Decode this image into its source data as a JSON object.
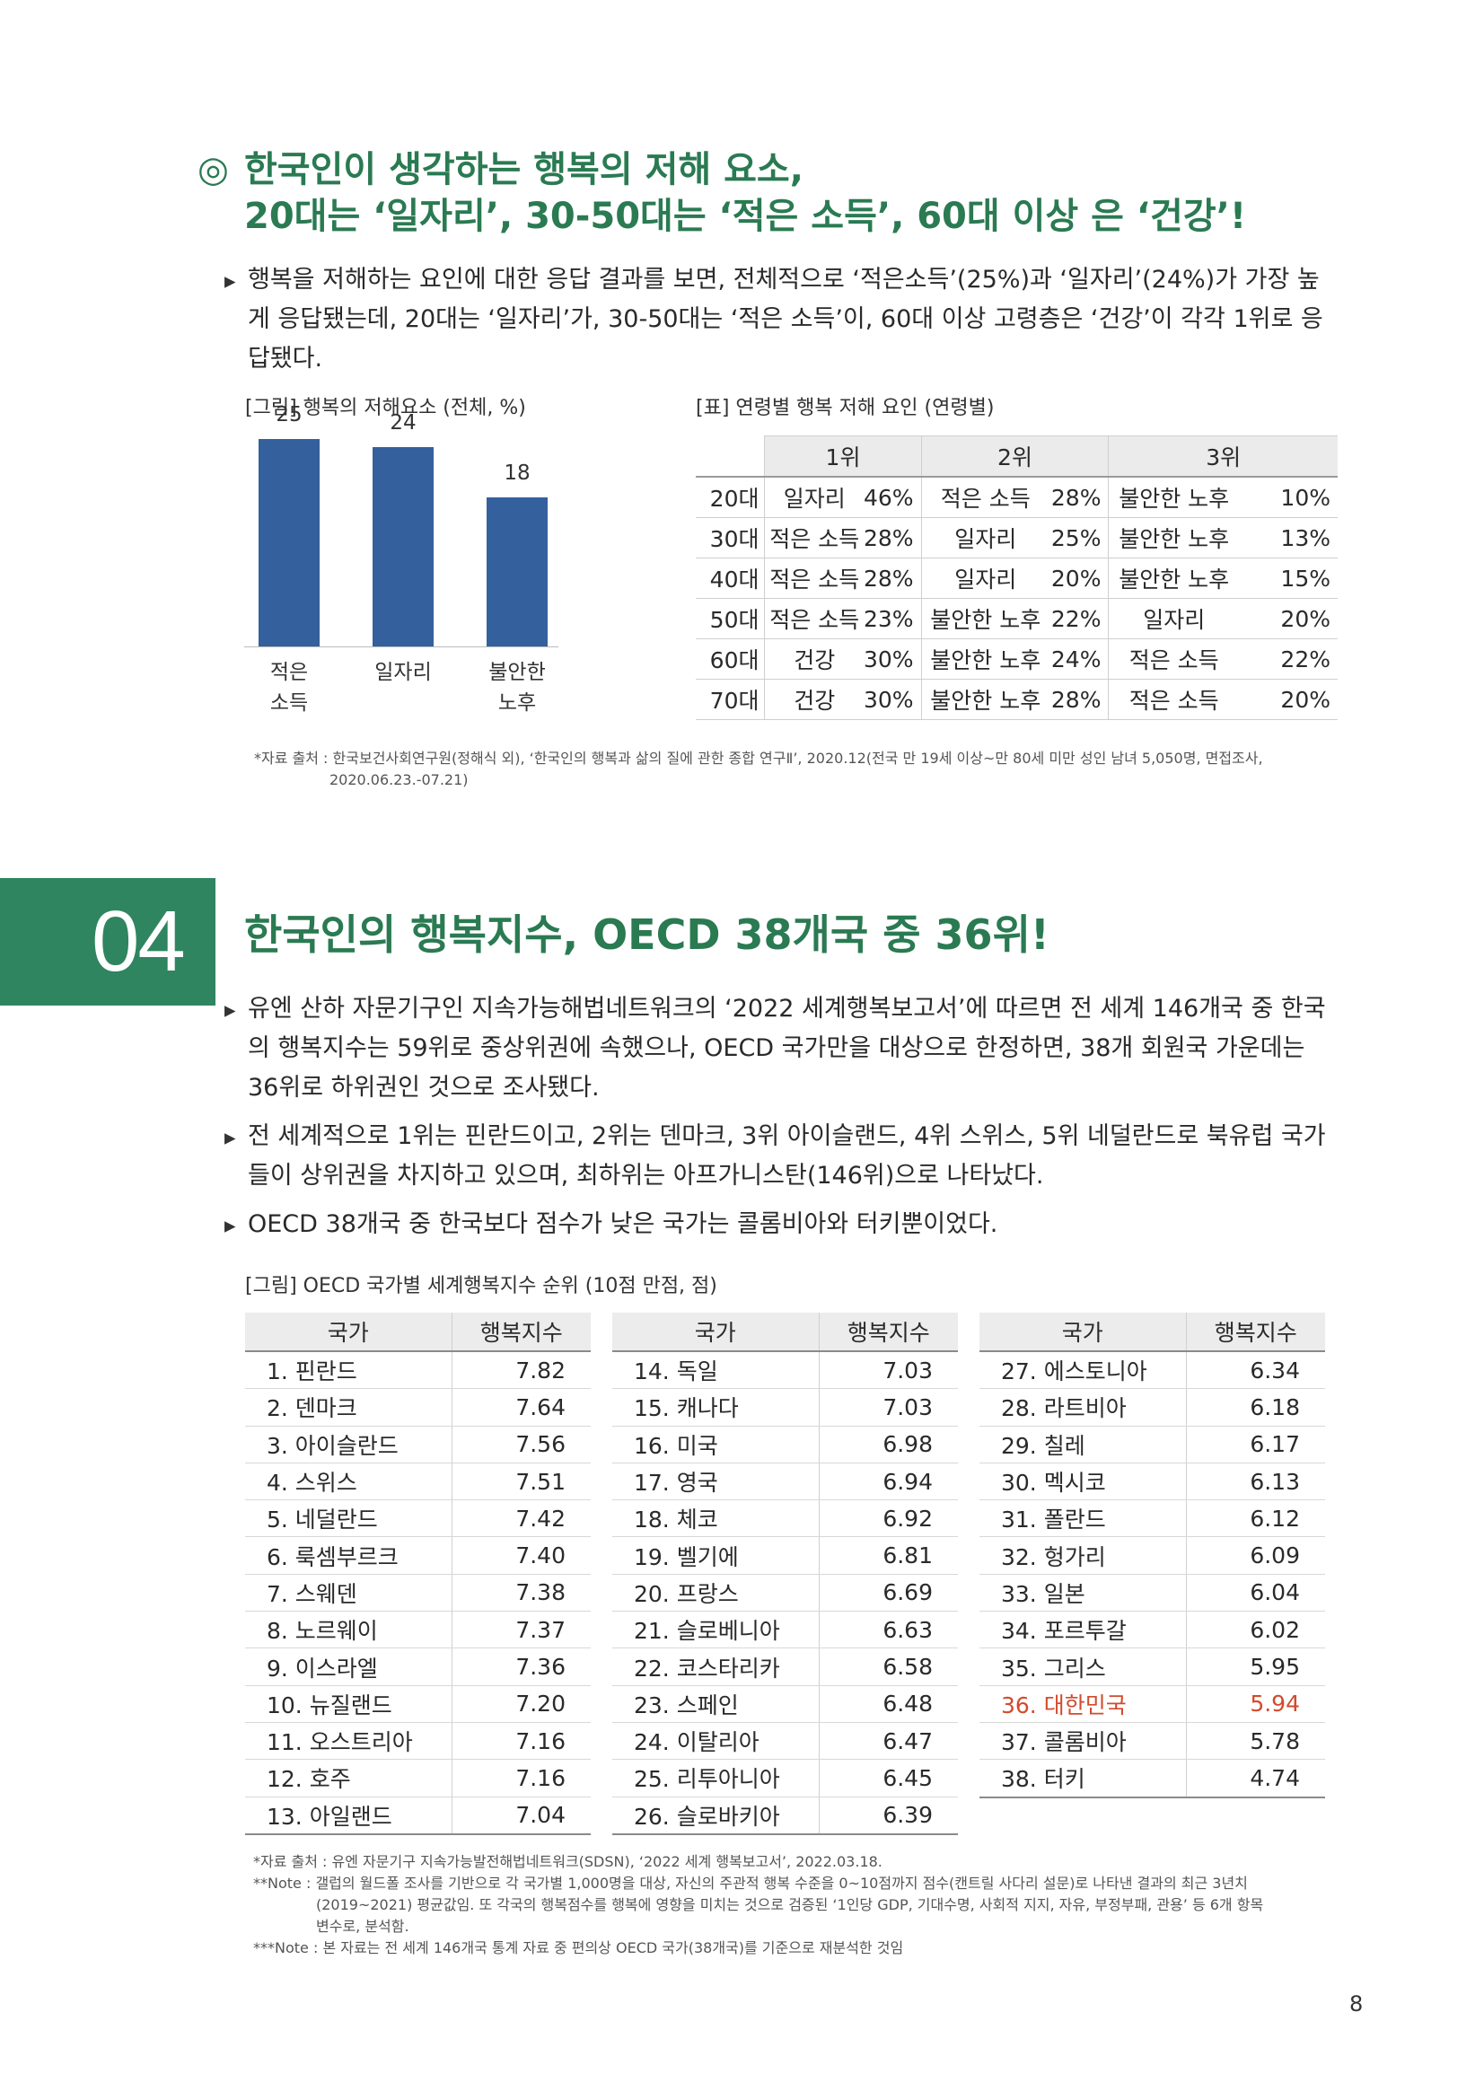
{
  "section1": {
    "title_marker": "◎",
    "title_line1": "한국인이 생각하는 행복의 저해 요소,",
    "title_line2": "20대는 ‘일자리’, 30-50대는 ‘적은 소득’, 60대 이상 은 ‘건강’!",
    "paragraph_lines": [
      "행복을 저해하는 요인에 대한 응답 결과를 보면, 전체적으로 ‘적은소득’(25%)과 ‘일자리’(24%)가 가장 높",
      "게 응답됐는데, 20대는 ‘일자리’가, 30-50대는 ‘적은 소득’이, 60대 이상 고령층은 ‘건강’이 각각 1위로 응",
      "답됐다."
    ],
    "chart_caption": "[그림] 행복의 저해요소 (전체, %)",
    "table_caption": "[표] 연령별 행복 저해 요인 (연령별)",
    "table": {
      "headers": [
        "1위",
        "2위",
        "3위"
      ],
      "rows": [
        {
          "age": "20대",
          "c1": [
            "일자리",
            "46%"
          ],
          "c2": [
            "적은 소득",
            "28%"
          ],
          "c3": [
            "불안한 노후",
            "10%"
          ]
        },
        {
          "age": "30대",
          "c1": [
            "적은 소득",
            "28%"
          ],
          "c2": [
            "일자리",
            "25%"
          ],
          "c3": [
            "불안한 노후",
            "13%"
          ]
        },
        {
          "age": "40대",
          "c1": [
            "적은 소득",
            "28%"
          ],
          "c2": [
            "일자리",
            "20%"
          ],
          "c3": [
            "불안한 노후",
            "15%"
          ]
        },
        {
          "age": "50대",
          "c1": [
            "적은 소득",
            "23%"
          ],
          "c2": [
            "불안한 노후",
            "22%"
          ],
          "c3": [
            "일자리",
            "20%"
          ]
        },
        {
          "age": "60대",
          "c1": [
            "건강",
            "30%"
          ],
          "c2": [
            "불안한 노후",
            "24%"
          ],
          "c3": [
            "적은 소득",
            "22%"
          ]
        },
        {
          "age": "70대",
          "c1": [
            "건강",
            "30%"
          ],
          "c2": [
            "불안한 노후",
            "28%"
          ],
          "c3": [
            "적은 소득",
            "20%"
          ]
        }
      ]
    },
    "source_line1": "*자료 출처 : 한국보건사회연구원(정해식 외), ‘한국인의 행복과 삶의 질에 관한 종합 연구Ⅱ’, 2020.12(전국 만 19세 이상~만 80세 미만 성인 남녀 5,050명, 면접조사,",
    "source_line2": "2020.06.23.-07.21)"
  },
  "chart_data": {
    "type": "bar",
    "title": "[그림] 행복의 저해요소 (전체, %)",
    "categories": [
      [
        "적은",
        "소득"
      ],
      [
        "일자리"
      ],
      [
        "불안한",
        "노후"
      ]
    ],
    "values": [
      25,
      24,
      18
    ],
    "value_labels": [
      "25",
      "24",
      "18"
    ],
    "ylim": [
      0,
      26
    ],
    "bar_color": "#34609d"
  },
  "section2": {
    "number": "04",
    "title": "한국인의 행복지수, OECD 38개국 중 36위!",
    "bullets": [
      [
        "유엔 산하 자문기구인 지속가능해법네트워크의 ‘2022 세계행복보고서’에 따르면 전 세계 146개국 중 한국",
        "의 행복지수는 59위로 중상위권에 속했으나, OECD 국가만을 대상으로 한정하면, 38개 회원국 가운데는",
        "36위로 하위권인 것으로 조사됐다."
      ],
      [
        "전 세계적으로 1위는 핀란드이고, 2위는 덴마크, 3위 아이슬랜드, 4위 스위스, 5위 네덜란드로 북유럽 국가",
        "들이 상위권을 차지하고 있으며, 최하위는 아프가니스탄(146위)으로 나타났다."
      ],
      [
        "OECD 38개국 중 한국보다 점수가 낮은 국가는 콜롬비아와 터키뿐이었다."
      ]
    ],
    "ranking_caption": "[그림] OECD 국가별 세계행복지수 순위 (10점 만점, 점)",
    "col_country": "국가",
    "col_score": "행복지수",
    "highlight_color": "#d34a2c",
    "tables": [
      [
        [
          "1. 핀란드",
          "7.82"
        ],
        [
          "2. 덴마크",
          "7.64"
        ],
        [
          "3. 아이슬란드",
          "7.56"
        ],
        [
          "4. 스위스",
          "7.51"
        ],
        [
          "5. 네덜란드",
          "7.42"
        ],
        [
          "6. 룩셈부르크",
          "7.40"
        ],
        [
          "7. 스웨덴",
          "7.38"
        ],
        [
          "8. 노르웨이",
          "7.37"
        ],
        [
          "9. 이스라엘",
          "7.36"
        ],
        [
          "10. 뉴질랜드",
          "7.20"
        ],
        [
          "11. 오스트리아",
          "7.16"
        ],
        [
          "12. 호주",
          "7.16"
        ],
        [
          "13. 아일랜드",
          "7.04"
        ]
      ],
      [
        [
          "14. 독일",
          "7.03"
        ],
        [
          "15. 캐나다",
          "7.03"
        ],
        [
          "16. 미국",
          "6.98"
        ],
        [
          "17. 영국",
          "6.94"
        ],
        [
          "18. 체코",
          "6.92"
        ],
        [
          "19. 벨기에",
          "6.81"
        ],
        [
          "20. 프랑스",
          "6.69"
        ],
        [
          "21. 슬로베니아",
          "6.63"
        ],
        [
          "22. 코스타리카",
          "6.58"
        ],
        [
          "23. 스페인",
          "6.48"
        ],
        [
          "24. 이탈리아",
          "6.47"
        ],
        [
          "25. 리투아니아",
          "6.45"
        ],
        [
          "26. 슬로바키아",
          "6.39"
        ]
      ],
      [
        [
          "27. 에스토니아",
          "6.34"
        ],
        [
          "28. 라트비아",
          "6.18"
        ],
        [
          "29. 칠레",
          "6.17"
        ],
        [
          "30. 멕시코",
          "6.13"
        ],
        [
          "31. 폴란드",
          "6.12"
        ],
        [
          "32. 헝가리",
          "6.09"
        ],
        [
          "33. 일본",
          "6.04"
        ],
        [
          "34. 포르투갈",
          "6.02"
        ],
        [
          "35. 그리스",
          "5.95"
        ],
        [
          "36. 대한민국",
          "5.94"
        ],
        [
          "37. 콜롬비아",
          "5.78"
        ],
        [
          "38. 터키",
          "4.74"
        ]
      ]
    ],
    "highlight_row": "36. 대한민국",
    "notes": [
      "*자료 출처 : 유엔 자문기구 지속가능발전해법네트워크(SDSN), ‘2022 세계 행복보고서’, 2022.03.18.",
      "**Note : 갤럽의 월드폴 조사를 기반으로 각 국가별 1,000명을 대상, 자신의 주관적 행복 수준을 0~10점까지 점수(캔트릴 사다리 설문)로 나타낸 결과의 최근 3년치",
      "(2019~2021) 평균값임. 또 각국의 행복점수를 행복에 영향을 미치는 것으로 검증된 ‘1인당 GDP, 기대수명, 사회적 지지, 자유, 부정부패, 관용’ 등 6개 항목",
      "변수로, 분석함.",
      "***Note : 본 자료는 전 세계 146개국 통계 자료 중 편의상 OECD 국가(38개국)를 기준으로 재분석한 것임"
    ]
  },
  "page_number": "8"
}
